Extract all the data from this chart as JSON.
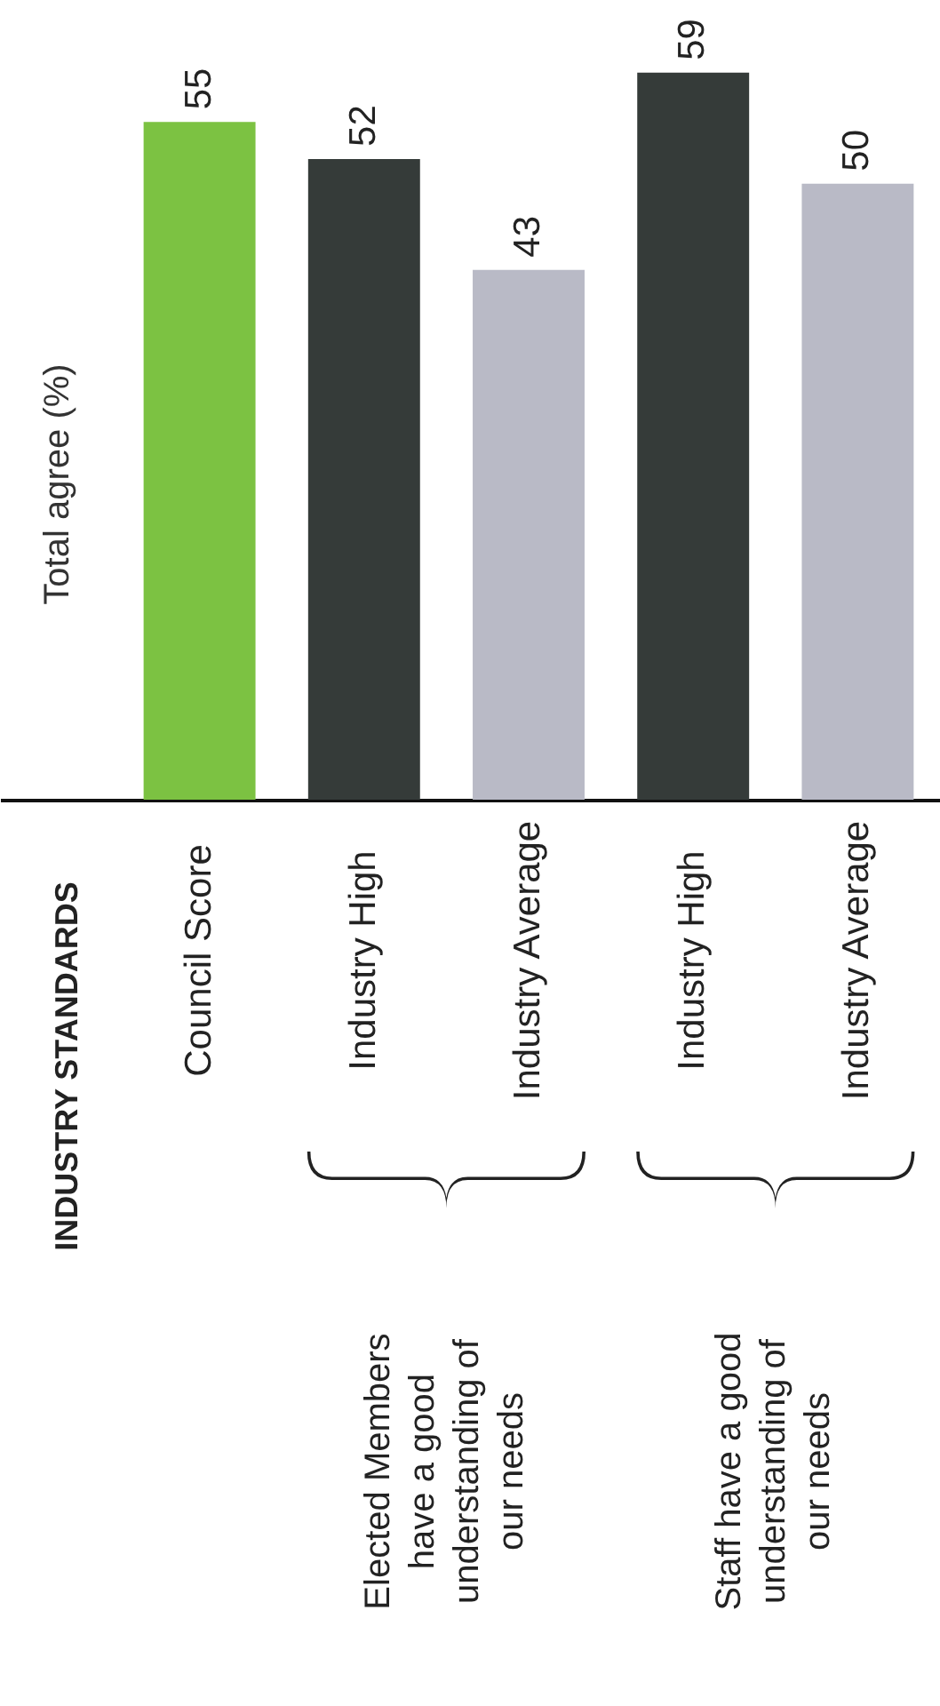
{
  "chart_data": {
    "type": "bar",
    "title": "INDUSTRY STANDARDS",
    "ylabel": "Total agree (%)",
    "categories": [
      "Council Score",
      "Industry High",
      "Industry Average",
      "Industry High",
      "Industry Average"
    ],
    "values": [
      55,
      52,
      43,
      59,
      50
    ],
    "colors": [
      "#7cc242",
      "#353b39",
      "#b9bac6",
      "#353b39",
      "#b9bac6"
    ],
    "data_labels": true,
    "annotations": [
      "Elected Members have a good understanding of our needs",
      "Staff have a good understanding of our needs"
    ]
  }
}
